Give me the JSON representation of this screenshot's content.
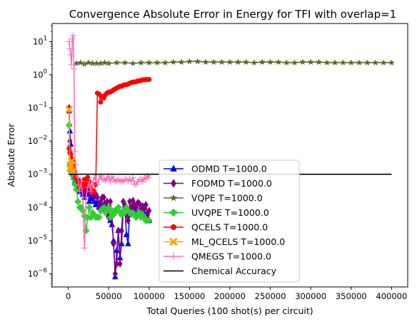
{
  "chart_data": {
    "type": "line",
    "title": "Convergence Absolute Error in Energy for TFI with overlap=1",
    "xlabel": "Total Queries (100 shot(s) per circuit)",
    "ylabel": "Absolute Error",
    "xscale": "linear",
    "yscale": "log",
    "xlim": [
      -20000,
      420000
    ],
    "ylim": [
      4e-07,
      35
    ],
    "xticks": [
      0,
      50000,
      100000,
      150000,
      200000,
      250000,
      300000,
      350000,
      400000
    ],
    "xtick_labels": [
      "0",
      "50000",
      "100000",
      "150000",
      "200000",
      "250000",
      "300000",
      "350000",
      "400000"
    ],
    "yticks": [
      1e-06,
      1e-05,
      0.0001,
      0.001,
      0.01,
      0.1,
      1,
      10
    ],
    "ytick_labels": [
      {
        "base": "10",
        "exp": "−6"
      },
      {
        "base": "10",
        "exp": "−5"
      },
      {
        "base": "10",
        "exp": "−4"
      },
      {
        "base": "10",
        "exp": "−3"
      },
      {
        "base": "10",
        "exp": "−2"
      },
      {
        "base": "10",
        "exp": "−1"
      },
      {
        "base": "10",
        "exp": "0"
      },
      {
        "base": "10",
        "exp": "1"
      }
    ],
    "grid": false,
    "legend_position": "lower-center",
    "series": [
      {
        "name": "ODMD T=1000.0",
        "color": "#0000ff",
        "marker": "triangle",
        "x": [
          1000,
          2000,
          3000,
          4000,
          5000,
          6000,
          7000,
          8000,
          9000,
          10000,
          12000,
          14000,
          16000,
          18000,
          20000,
          22000,
          24000,
          26000,
          28000,
          30000,
          32000,
          34000,
          36000,
          38000,
          40000,
          42000,
          44000,
          46000,
          48000,
          50000,
          52000,
          54000,
          56000,
          58000,
          60000,
          62000,
          64000,
          66000,
          68000,
          70000,
          72000,
          74000,
          76000,
          78000,
          80000,
          82000,
          84000,
          86000,
          88000,
          90000,
          92000,
          94000,
          96000,
          98000,
          100000
        ],
        "y": [
          0.08,
          0.02,
          0.008,
          0.002,
          0.0015,
          0.001,
          0.0008,
          0.0006,
          0.0007,
          0.0005,
          0.0004,
          0.0003,
          0.0003,
          0.00025,
          0.0002,
          0.0003,
          0.00025,
          0.00015,
          0.0002,
          0.00018,
          0.00015,
          0.00012,
          0.00015,
          0.0001,
          0.00013,
          0.0001,
          0.00012,
          8e-05,
          9e-05,
          6e-05,
          4e-05,
          3e-05,
          1e-05,
          8e-07,
          5e-06,
          2e-05,
          3e-06,
          8e-06,
          8e-05,
          0.0001,
          1.5e-05,
          8e-06,
          9e-05,
          8e-05,
          7e-05,
          9e-05,
          7e-05,
          6e-05,
          8e-05,
          7e-05,
          6e-05,
          7e-05,
          6e-05,
          5e-05,
          4e-05
        ]
      },
      {
        "name": "FODMD T=1000.0",
        "color": "#800080",
        "marker": "diamond",
        "x": [
          1000,
          2000,
          3000,
          4000,
          5000,
          6000,
          7000,
          8000,
          9000,
          10000,
          12000,
          14000,
          16000,
          18000,
          20000,
          22000,
          24000,
          26000,
          28000,
          30000,
          32000,
          34000,
          36000,
          38000,
          40000,
          42000,
          44000,
          46000,
          48000,
          50000,
          52000,
          54000,
          56000,
          58000,
          60000,
          62000,
          64000,
          66000,
          68000,
          70000,
          72000,
          74000,
          76000,
          78000,
          80000,
          82000,
          84000,
          86000,
          88000,
          90000,
          92000,
          94000,
          96000,
          98000,
          100000
        ],
        "y": [
          0.1,
          0.01,
          0.004,
          0.002,
          0.0015,
          0.001,
          0.0012,
          0.0008,
          0.0006,
          0.0007,
          0.0005,
          0.0006,
          0.0004,
          0.0005,
          0.0003,
          0.0004,
          0.00035,
          0.0003,
          0.00025,
          0.0003,
          0.0002,
          0.00025,
          0.0002,
          0.0001,
          0.00015,
          0.0002,
          0.0002,
          0.00012,
          0.00015,
          5e-05,
          0.00015,
          6e-05,
          8e-06,
          1e-06,
          2e-06,
          2e-05,
          2e-06,
          2e-05,
          0.00015,
          0.00012,
          6e-05,
          4e-05,
          0.00015,
          0.0001,
          0.00016,
          0.00012,
          0.0001,
          0.00014,
          0.00013,
          9e-05,
          0.00011,
          9e-05,
          0.00012,
          6e-05,
          8e-05
        ]
      },
      {
        "name": "VQPE T=1000.0",
        "color": "#556b2f",
        "marker": "star",
        "x": [
          10000,
          15000,
          20000,
          25000,
          30000,
          35000,
          40000,
          45000,
          50000,
          60000,
          70000,
          80000,
          90000,
          100000,
          110000,
          120000,
          130000,
          140000,
          150000,
          160000,
          170000,
          180000,
          190000,
          200000,
          210000,
          220000,
          230000,
          240000,
          250000,
          260000,
          270000,
          280000,
          290000,
          300000,
          310000,
          320000,
          330000,
          340000,
          350000,
          360000,
          370000,
          380000,
          390000,
          400000
        ],
        "y": [
          2.2,
          2.3,
          2.1,
          2.3,
          2.2,
          2.2,
          2.2,
          2.3,
          2.2,
          2.3,
          2.3,
          2.2,
          2.3,
          2.3,
          2.3,
          2.3,
          2.4,
          2.4,
          2.5,
          2.5,
          2.4,
          2.4,
          2.4,
          2.4,
          2.4,
          2.4,
          2.3,
          2.4,
          2.4,
          2.4,
          2.3,
          2.3,
          2.4,
          2.4,
          2.4,
          2.3,
          2.3,
          2.3,
          2.3,
          2.3,
          2.3,
          2.3,
          2.3,
          2.3
        ]
      },
      {
        "name": "UVQPE T=1000.0",
        "color": "#32cd32",
        "marker": "plus",
        "x": [
          1000,
          2000,
          3000,
          4000,
          5000,
          6000,
          7000,
          8000,
          9000,
          10000,
          12000,
          14000,
          16000,
          18000,
          20000,
          22000,
          24000,
          26000,
          28000,
          30000,
          32000,
          34000,
          36000,
          38000,
          40000,
          42000,
          44000,
          46000,
          48000,
          50000,
          52000,
          54000,
          56000,
          58000,
          60000,
          62000,
          64000,
          66000,
          68000,
          70000,
          72000,
          74000,
          76000,
          78000,
          80000,
          82000,
          84000,
          86000,
          88000,
          90000,
          92000,
          94000,
          96000,
          98000,
          100000
        ],
        "y": [
          0.03,
          0.002,
          0.0015,
          0.0012,
          0.0012,
          0.001,
          0.0008,
          0.0005,
          0.0005,
          0.00035,
          0.00015,
          0.0001,
          0.0001,
          8e-05,
          5.5e-05,
          2e-05,
          5e-05,
          0.0001,
          5e-05,
          7e-05,
          6e-05,
          5e-05,
          5e-05,
          5e-05,
          8e-05,
          9e-05,
          0.0001,
          7e-05,
          8e-05,
          0.0001,
          5e-05,
          8e-05,
          6e-05,
          7e-05,
          9e-05,
          0.0001,
          7e-05,
          6e-05,
          8e-05,
          7e-05,
          0.0001,
          8e-05,
          7e-05,
          6e-05,
          7e-05,
          6e-05,
          5e-05,
          6e-05,
          7e-05,
          5e-05,
          6e-05,
          5e-05,
          4e-05,
          4e-05,
          4e-05
        ]
      },
      {
        "name": "QCELS T=1000.0",
        "color": "#ff0000",
        "marker": "circle",
        "x": [
          1000,
          2000,
          3000,
          4000,
          5000,
          6000,
          7000,
          8000,
          9000,
          10000,
          12000,
          14000,
          16000,
          18000,
          20000,
          22000,
          24000,
          26000,
          28000,
          30000,
          32000,
          34000,
          36000,
          38000,
          40000,
          42000,
          44000,
          46000,
          48000,
          50000,
          52000,
          54000,
          56000,
          58000,
          60000,
          62000,
          64000,
          66000,
          68000,
          70000,
          72000,
          74000,
          76000,
          78000,
          80000,
          82000,
          84000,
          86000,
          88000,
          90000,
          92000,
          94000,
          96000,
          98000,
          100000
        ],
        "y": [
          0.006,
          0.0045,
          0.004,
          0.003,
          0.0025,
          0.002,
          0.0015,
          0.0012,
          0.0008,
          0.0008,
          0.0006,
          0.0004,
          0.0005,
          0.0004,
          0.0007,
          0.0005,
          0.0008,
          0.0006,
          0.0004,
          0.0003,
          0.0003,
          0.0005,
          0.28,
          0.26,
          0.15,
          0.22,
          0.2,
          0.25,
          0.28,
          0.3,
          0.3,
          0.32,
          0.35,
          0.37,
          0.4,
          0.42,
          0.45,
          0.45,
          0.48,
          0.5,
          0.5,
          0.52,
          0.55,
          0.58,
          0.6,
          0.6,
          0.62,
          0.65,
          0.65,
          0.68,
          0.7,
          0.7,
          0.72,
          0.72,
          0.72
        ]
      },
      {
        "name": "ML_QCELS T=1000.0",
        "color": "#ffa500",
        "marker": "x",
        "x": [
          1000,
          2000,
          3000,
          4000,
          5000,
          6000
        ],
        "y": [
          0.09,
          0.0015,
          0.002,
          0.0025,
          0.0012,
          0.0013
        ]
      },
      {
        "name": "QMEGS T=1000.0",
        "color": "#ff69b4",
        "marker": "thin-plus",
        "x": [
          1000,
          2000,
          3000,
          4000,
          5000,
          6000,
          7000,
          8000,
          9000,
          10000,
          12000,
          14000,
          16000,
          18000,
          20000,
          22000,
          24000,
          26000,
          28000,
          30000,
          32000,
          34000,
          36000,
          38000,
          40000,
          42000,
          44000,
          46000,
          48000,
          50000,
          52000,
          54000,
          56000,
          58000,
          60000,
          62000,
          64000,
          66000,
          68000,
          70000,
          72000,
          74000,
          76000,
          78000,
          80000,
          82000,
          84000,
          86000,
          88000,
          90000,
          92000,
          94000,
          96000,
          98000,
          100000
        ],
        "y": [
          10,
          6,
          4,
          2,
          12,
          15,
          1.5,
          0.005,
          0.002,
          0.001,
          0.0008,
          0.0003,
          0.0006,
          0.0002,
          6e-06,
          0.0002,
          0.0004,
          0.0006,
          0.0003,
          0.0005,
          0.0008,
          0.0007,
          0.0005,
          0.0007,
          0.0009,
          0.0007,
          0.0007,
          0.00065,
          0.00075,
          0.00085,
          0.0006,
          0.00085,
          0.0007,
          0.0006,
          0.00065,
          0.0007,
          0.0006,
          0.00065,
          0.0006,
          0.0007,
          0.0007,
          0.00065,
          0.0007,
          0.0006,
          0.0008,
          0.0005,
          0.0005,
          0.0006,
          0.0007,
          0.0007,
          0.0006,
          0.0008,
          0.0007,
          0.0009,
          0.0008
        ]
      },
      {
        "name": "Chemical Accuracy",
        "color": "#000000",
        "marker": "none",
        "x": [
          0,
          400000
        ],
        "y": [
          0.001,
          0.001
        ]
      }
    ]
  }
}
